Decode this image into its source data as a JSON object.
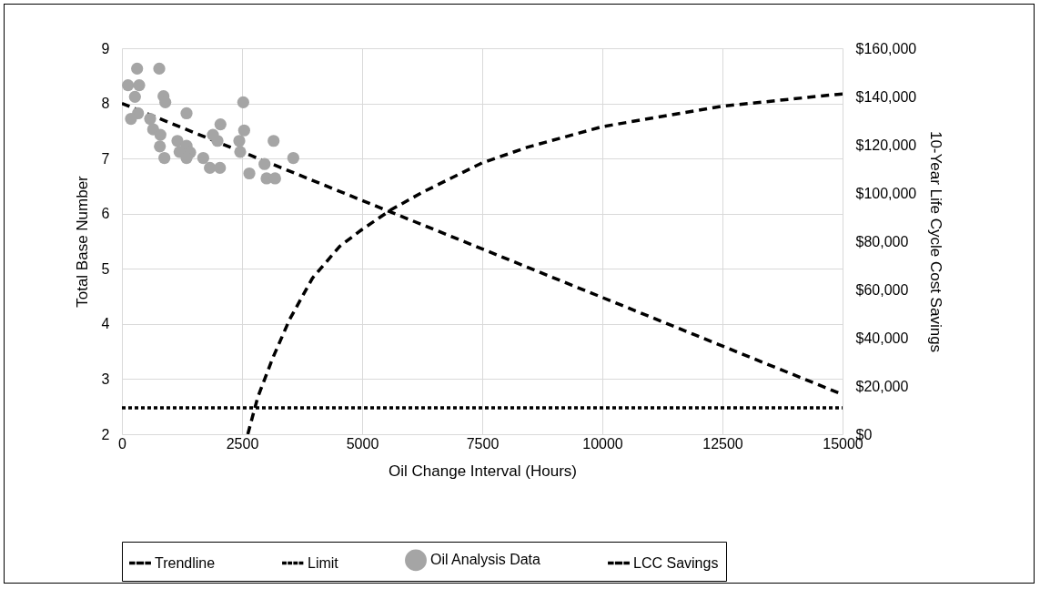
{
  "chart_data": {
    "type": "line",
    "xlabel": "Oil Change Interval (Hours)",
    "ylabel": "Total Base Number",
    "y2label": "10-Year Life Cycle Cost Savings",
    "xlim": [
      0,
      15000
    ],
    "xticks": [
      0,
      2500,
      5000,
      7500,
      10000,
      12500,
      15000
    ],
    "ylim": [
      2,
      9
    ],
    "yticks": [
      2,
      3,
      4,
      5,
      6,
      7,
      8,
      9
    ],
    "y2lim": [
      0,
      160000
    ],
    "y2ticks": [
      {
        "value": 0,
        "label": "$0"
      },
      {
        "value": 20000,
        "label": "$20,000"
      },
      {
        "value": 40000,
        "label": "$40,000"
      },
      {
        "value": 60000,
        "label": "$60,000"
      },
      {
        "value": 80000,
        "label": "$80,000"
      },
      {
        "value": 100000,
        "label": "$100,000"
      },
      {
        "value": 120000,
        "label": "$120,000"
      },
      {
        "value": 140000,
        "label": "$140,000"
      },
      {
        "value": 160000,
        "label": "$160,000"
      }
    ],
    "grid": true,
    "legend": "bottom",
    "series": [
      {
        "name": "Trendline",
        "type": "line",
        "color": "#000000",
        "line_style": "dashed",
        "x": [
          0,
          15000
        ],
        "values": [
          8.0,
          2.72
        ]
      },
      {
        "name": "Limit",
        "type": "line",
        "color": "#000000",
        "line_style": "dotted",
        "x": [
          0,
          15000
        ],
        "values": [
          2.48,
          2.48
        ]
      },
      {
        "name": "Oil Analysis Data",
        "type": "scatter",
        "color": "#a5a5a5",
        "marker": "circle",
        "x": [
          316,
          777,
          126,
          360,
          271,
          865,
          903,
          2525,
          335,
          189,
          1345,
          587,
          650,
          801,
          2051,
          2544,
          1894,
          1989,
          1155,
          2443,
          790,
          3157,
          1345,
          1420,
          1199,
          2462,
          884,
          1345,
          1692,
          3567,
          2968,
          1831,
          2040,
          2652,
          3011,
          3188
        ],
        "values": [
          8.63,
          8.63,
          8.33,
          8.33,
          8.12,
          8.13,
          8.02,
          8.02,
          7.82,
          7.72,
          7.82,
          7.72,
          7.53,
          7.43,
          7.62,
          7.51,
          7.43,
          7.32,
          7.32,
          7.32,
          7.22,
          7.32,
          7.23,
          7.11,
          7.12,
          7.12,
          7.01,
          7.01,
          7.01,
          7.01,
          6.9,
          6.83,
          6.83,
          6.73,
          6.64,
          6.64
        ]
      },
      {
        "name": "LCC Savings",
        "type": "line",
        "axis": "y2",
        "color": "#000000",
        "line_style": "dashed",
        "x": [
          2620,
          2827,
          3144,
          3491,
          3965,
          4533,
          5000,
          5606,
          6237,
          7500,
          8447,
          9998,
          12466,
          14837,
          15000
        ],
        "values": [
          0,
          15300,
          31800,
          47600,
          64700,
          77900,
          84900,
          93100,
          100100,
          112500,
          119000,
          127500,
          135900,
          140800,
          141000
        ]
      }
    ]
  }
}
